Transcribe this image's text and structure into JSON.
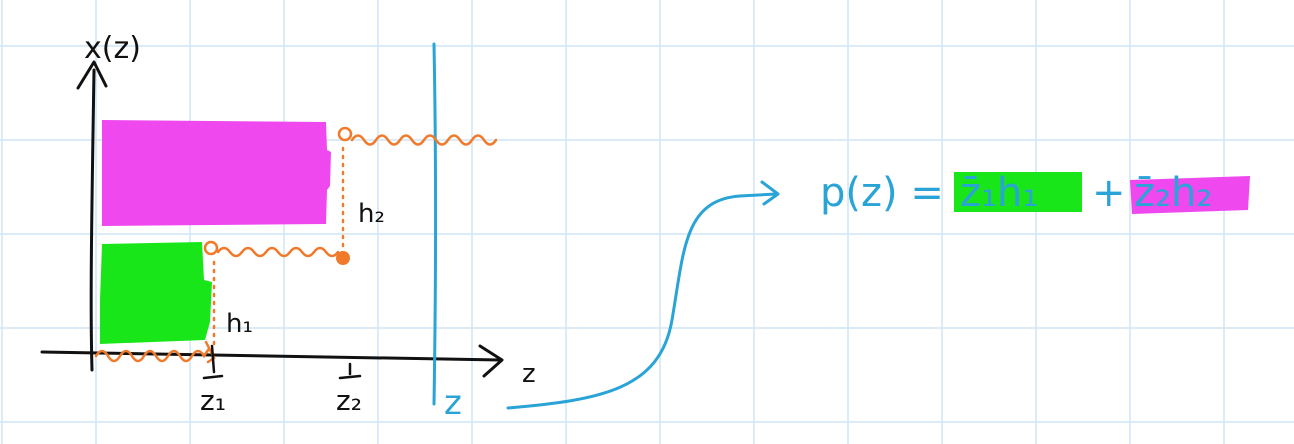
{
  "colors": {
    "grid": "#cfe6f5",
    "ink": "#111111",
    "blue": "#2aa3d6",
    "orange": "#f07a2a",
    "green": "#19e619",
    "magenta": "#ee48ee"
  },
  "axes": {
    "y_label": "x(z)",
    "x_label": "z"
  },
  "ticks": {
    "z1": "z₁",
    "z2": "z₂",
    "z": "z"
  },
  "heights": {
    "h1": "h₁",
    "h2": "h₂"
  },
  "formula": {
    "lhs": "p(z) =",
    "term1": "z̄₁h₁",
    "plus": "+",
    "term2": "z̄₂h₂"
  }
}
